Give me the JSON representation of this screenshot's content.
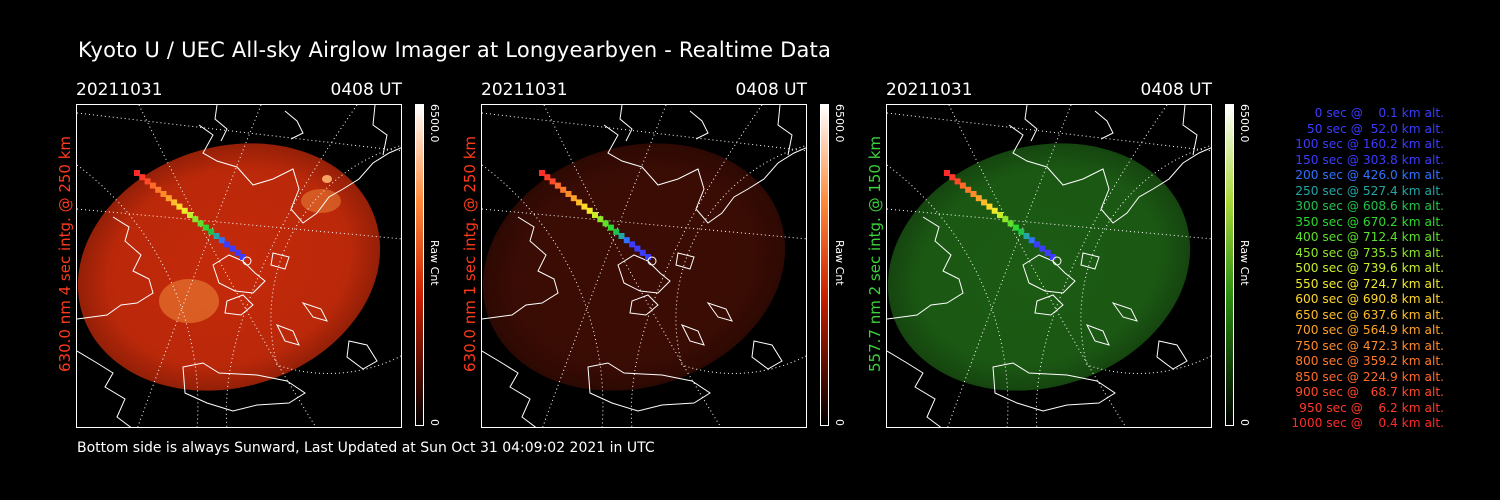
{
  "title": "Kyoto U / UEC All-sky Airglow Imager at Longyearbyen - Realtime Data",
  "footer": "Bottom side is always Sunward, Last Updated at Sun Oct 31 04:09:02 2021 in UTC",
  "panels": [
    {
      "date": "20211031",
      "time": "0408 UT",
      "side_label": "630.0 nm 4 sec intg. @ 250 km",
      "side_color": "#ff3a1a",
      "colorbar_max": "6500.0",
      "colorbar_min": "0",
      "colorbar_label": "Raw Cnt",
      "glow_color": "#c42a0a",
      "colorbar_colors": [
        "#ffffff",
        "#ff8a3a",
        "#c81e00",
        "#000000"
      ]
    },
    {
      "date": "20211031",
      "time": "0408 UT",
      "side_label": "630.0 nm 1 sec intg. @ 250 km",
      "side_color": "#ff3a1a",
      "colorbar_max": "6500.0",
      "colorbar_min": "0",
      "colorbar_label": "Raw Cnt",
      "glow_color": "#3c0c04",
      "colorbar_colors": [
        "#ffffff",
        "#ff8a3a",
        "#c81e00",
        "#000000"
      ]
    },
    {
      "date": "20211031",
      "time": "0408 UT",
      "side_label": "557.7 nm 2 sec intg. @ 150 km",
      "side_color": "#3cd23c",
      "colorbar_max": "6500.0",
      "colorbar_min": "0",
      "colorbar_label": "Raw Cnt",
      "glow_color": "#1c5c14",
      "colorbar_colors": [
        "#ffffff",
        "#a8d838",
        "#2a8c10",
        "#000000"
      ]
    }
  ],
  "time_legend": [
    {
      "text": "   0 sec @    0.1 km alt.",
      "color": "#3c3cff"
    },
    {
      "text": "  50 sec @  52.0 km alt.",
      "color": "#3c3cff"
    },
    {
      "text": " 100 sec @ 160.2 km alt.",
      "color": "#3c3cff"
    },
    {
      "text": " 150 sec @ 303.8 km alt.",
      "color": "#3c3cff"
    },
    {
      "text": " 200 sec @ 426.0 km alt.",
      "color": "#2f72ff"
    },
    {
      "text": " 250 sec @ 527.4 km alt.",
      "color": "#22a6a6"
    },
    {
      "text": " 300 sec @ 608.6 km alt.",
      "color": "#22c24a"
    },
    {
      "text": " 350 sec @ 670.2 km alt.",
      "color": "#2ed82e"
    },
    {
      "text": " 400 sec @ 712.4 km alt.",
      "color": "#5ce02a"
    },
    {
      "text": " 450 sec @ 735.5 km alt.",
      "color": "#8ee62a"
    },
    {
      "text": " 500 sec @ 739.6 km alt.",
      "color": "#c8ec2a"
    },
    {
      "text": " 550 sec @ 724.7 km alt.",
      "color": "#f0ea2a"
    },
    {
      "text": " 600 sec @ 690.8 km alt.",
      "color": "#ffd82a"
    },
    {
      "text": " 650 sec @ 637.6 km alt.",
      "color": "#ffbc2a"
    },
    {
      "text": " 700 sec @ 564.9 km alt.",
      "color": "#ffa22a"
    },
    {
      "text": " 750 sec @ 472.3 km alt.",
      "color": "#ff8a2a"
    },
    {
      "text": " 800 sec @ 359.2 km alt.",
      "color": "#ff7a2a"
    },
    {
      "text": " 850 sec @ 224.9 km alt.",
      "color": "#ff6a2a"
    },
    {
      "text": " 900 sec @   68.7 km alt.",
      "color": "#ff4a2a"
    },
    {
      "text": " 950 sec @    6.2 km alt.",
      "color": "#ff3a2a"
    },
    {
      "text": "1000 sec @    0.4 km alt.",
      "color": "#ff2a2a"
    }
  ],
  "track_colors": [
    "#ff2a2a",
    "#ff3a2a",
    "#ff4a2a",
    "#ff6a2a",
    "#ff7a2a",
    "#ff8a2a",
    "#ffa22a",
    "#ffbc2a",
    "#ffd82a",
    "#f0ea2a",
    "#c8ec2a",
    "#8ee62a",
    "#5ce02a",
    "#2ed82e",
    "#22c24a",
    "#22a6a6",
    "#2f72ff",
    "#3c3cff",
    "#3c3cff",
    "#3c3cff",
    "#3c3cff"
  ]
}
